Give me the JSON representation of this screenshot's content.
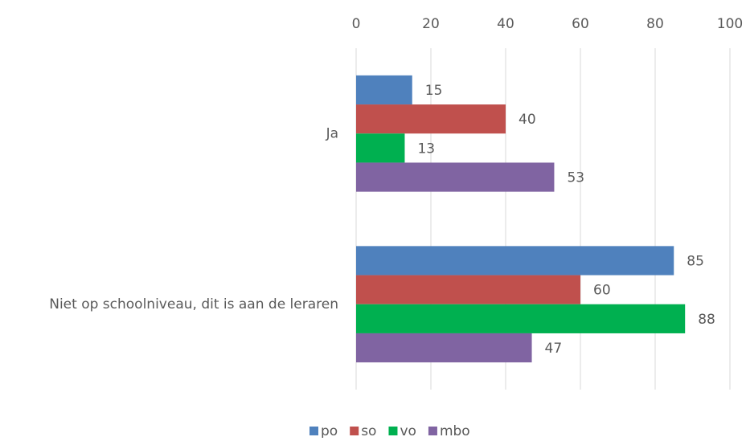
{
  "chart_data": {
    "type": "bar",
    "orientation": "horizontal",
    "categories": [
      "Ja",
      "Niet op schoolniveau, dit is aan de leraren"
    ],
    "series": [
      {
        "name": "po",
        "color": "#4f81bd",
        "values": [
          15,
          85
        ]
      },
      {
        "name": "so",
        "color": "#c0504d",
        "values": [
          40,
          60
        ]
      },
      {
        "name": "vo",
        "color": "#00b050",
        "values": [
          13,
          88
        ]
      },
      {
        "name": "mbo",
        "color": "#8064a2",
        "values": [
          53,
          47
        ]
      }
    ],
    "xlim": [
      0,
      100
    ],
    "xticks": [
      0,
      20,
      40,
      60,
      80,
      100
    ],
    "grid": true,
    "legend": "bottom"
  }
}
